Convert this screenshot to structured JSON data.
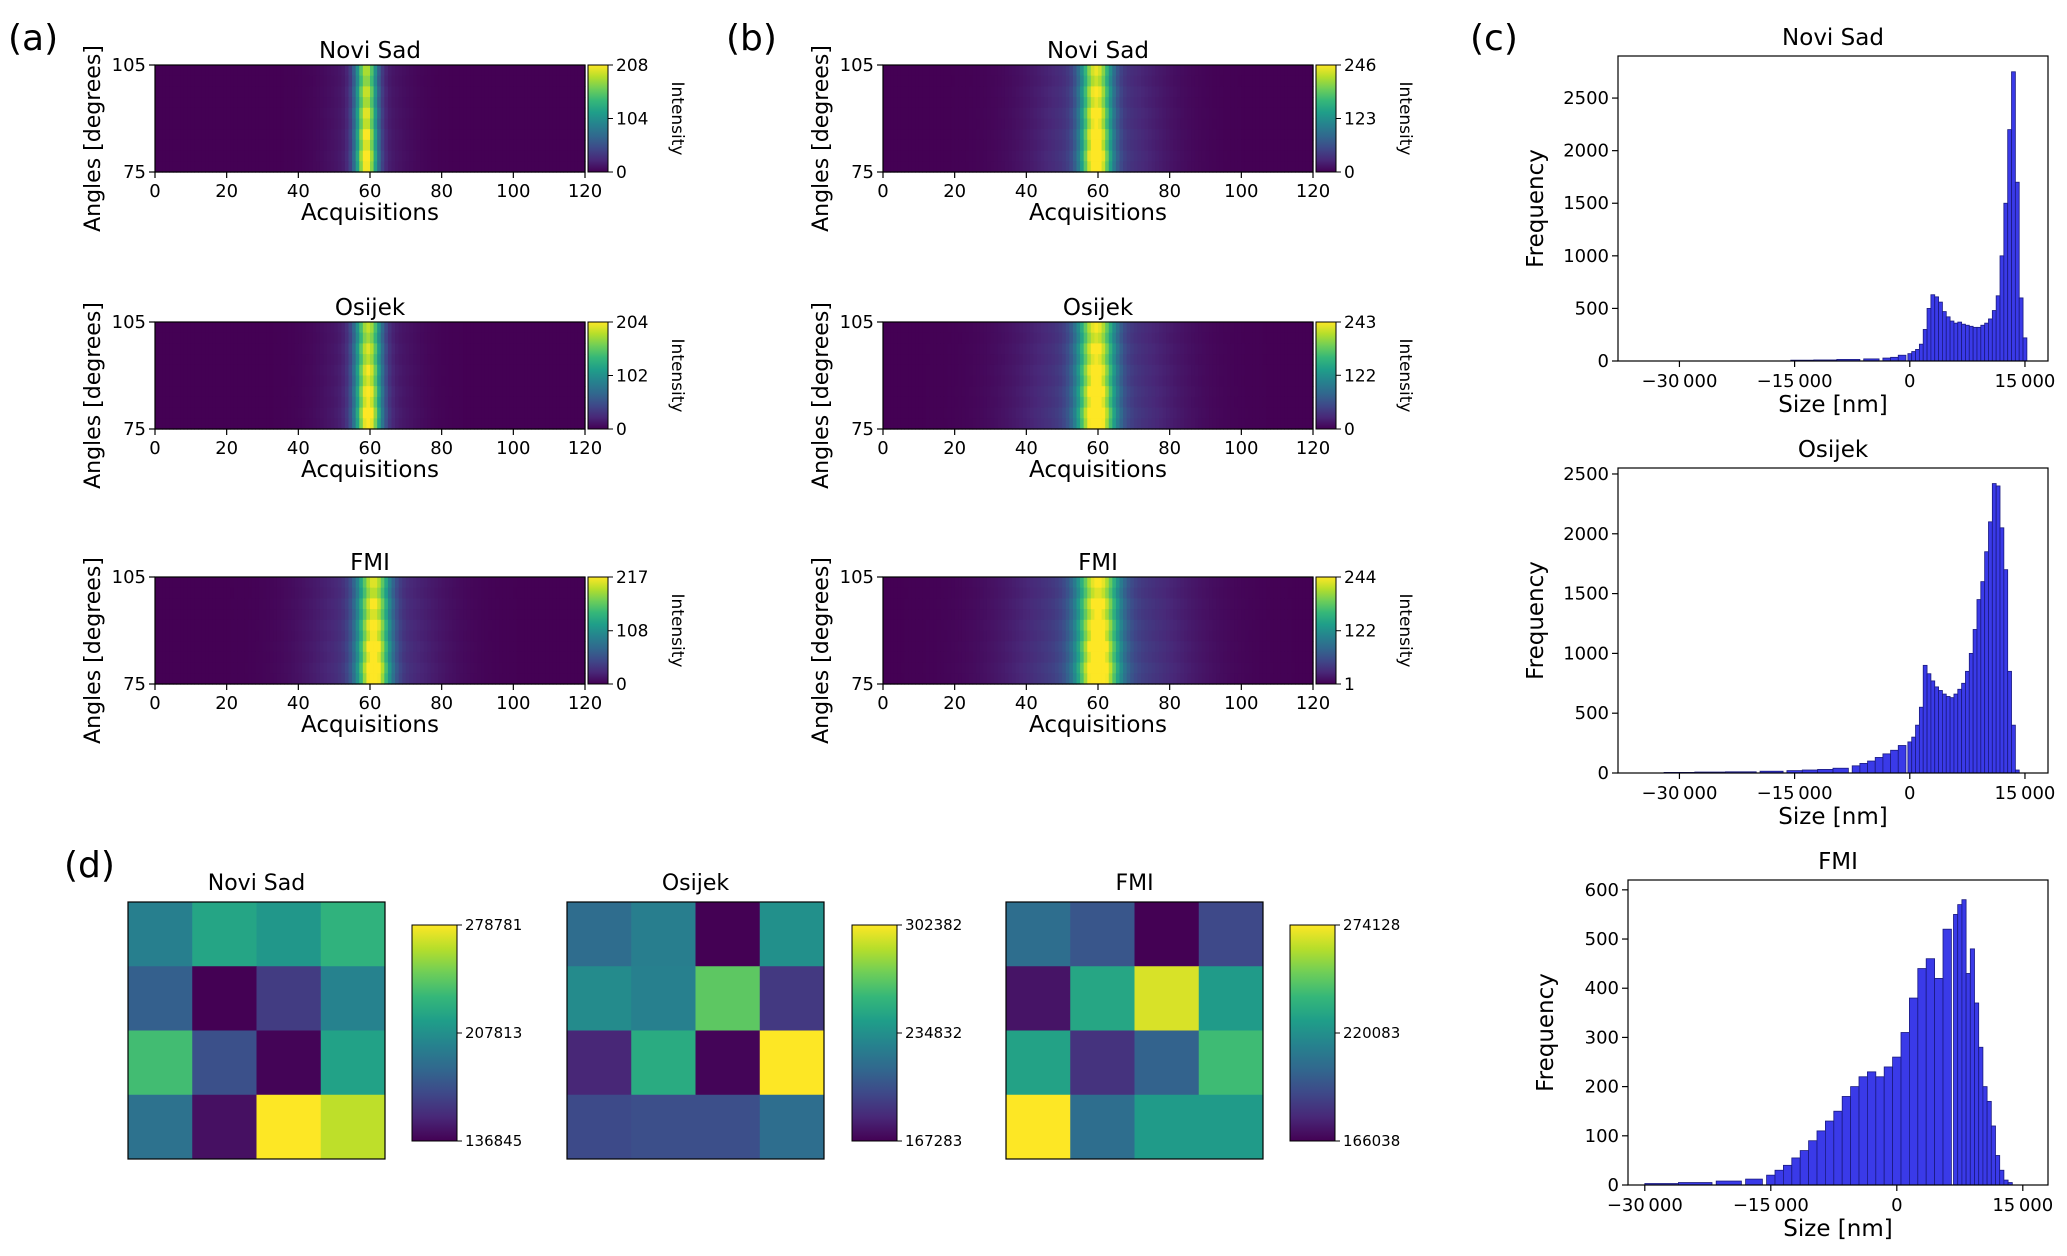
{
  "panel_letters": [
    "(a)",
    "(b)",
    "(c)",
    "(d)"
  ],
  "colormap_stops": [
    "#440154",
    "#482878",
    "#3e4989",
    "#31688e",
    "#26828e",
    "#1f9e89",
    "#35b779",
    "#6ece58",
    "#b5de2b",
    "#fde725"
  ],
  "hist_color": "#3a3ae8",
  "chart_data": [
    {
      "panel": "(a)",
      "type": "heatmap",
      "title": "Novi Sad",
      "xlabel": "Acquisitions",
      "ylabel": "Angles [degrees]",
      "colorbar_label": "Intensity",
      "xlim": [
        0,
        120
      ],
      "ylim": [
        75,
        105
      ],
      "xticks": [
        0,
        20,
        40,
        60,
        80,
        100,
        120
      ],
      "yticks": [
        75,
        105
      ],
      "colorbar_ticks": [
        0,
        104,
        208
      ],
      "peak_center": 59,
      "peak_width": 2.2,
      "shoulder_width": 8,
      "shoulder_level": 0.1
    },
    {
      "panel": "(a)",
      "type": "heatmap",
      "title": "Osijek",
      "xlabel": "Acquisitions",
      "ylabel": "Angles [degrees]",
      "colorbar_label": "Intensity",
      "xlim": [
        0,
        120
      ],
      "ylim": [
        75,
        105
      ],
      "xticks": [
        0,
        20,
        40,
        60,
        80,
        100,
        120
      ],
      "yticks": [
        75,
        105
      ],
      "colorbar_ticks": [
        0,
        102,
        204
      ],
      "peak_center": 59.5,
      "peak_width": 2.6,
      "shoulder_width": 9,
      "shoulder_level": 0.12
    },
    {
      "panel": "(a)",
      "type": "heatmap",
      "title": "FMI",
      "xlabel": "Acquisitions",
      "ylabel": "Angles [degrees]",
      "colorbar_label": "Intensity",
      "xlim": [
        0,
        120
      ],
      "ylim": [
        75,
        105
      ],
      "xticks": [
        0,
        20,
        40,
        60,
        80,
        100,
        120
      ],
      "yticks": [
        75,
        105
      ],
      "colorbar_ticks": [
        0,
        108,
        217
      ],
      "peak_center": 61,
      "peak_width": 3.2,
      "shoulder_width": 13,
      "shoulder_level": 0.18
    },
    {
      "panel": "(b)",
      "type": "heatmap",
      "title": "Novi Sad",
      "xlabel": "Acquisitions",
      "ylabel": "Angles [degrees]",
      "colorbar_label": "Intensity",
      "xlim": [
        0,
        120
      ],
      "ylim": [
        75,
        105
      ],
      "xticks": [
        0,
        20,
        40,
        60,
        80,
        100,
        120
      ],
      "yticks": [
        75,
        105
      ],
      "colorbar_ticks": [
        0,
        123,
        246
      ],
      "peak_center": 59.5,
      "peak_width": 3.0,
      "shoulder_width": 13,
      "shoulder_level": 0.2
    },
    {
      "panel": "(b)",
      "type": "heatmap",
      "title": "Osijek",
      "xlabel": "Acquisitions",
      "ylabel": "Angles [degrees]",
      "colorbar_label": "Intensity",
      "xlim": [
        0,
        120
      ],
      "ylim": [
        75,
        105
      ],
      "xticks": [
        0,
        20,
        40,
        60,
        80,
        100,
        120
      ],
      "yticks": [
        75,
        105
      ],
      "colorbar_ticks": [
        0,
        122,
        243
      ],
      "peak_center": 59.5,
      "peak_width": 3.6,
      "shoulder_width": 15,
      "shoulder_level": 0.22
    },
    {
      "panel": "(b)",
      "type": "heatmap",
      "title": "FMI",
      "xlabel": "Acquisitions",
      "ylabel": "Angles [degrees]",
      "colorbar_label": "Intensity",
      "xlim": [
        0,
        120
      ],
      "ylim": [
        75,
        105
      ],
      "xticks": [
        0,
        20,
        40,
        60,
        80,
        100,
        120
      ],
      "yticks": [
        75,
        105
      ],
      "colorbar_ticks": [
        1,
        122,
        244
      ],
      "peak_center": 60,
      "peak_width": 4.0,
      "shoulder_width": 17,
      "shoulder_level": 0.25
    },
    {
      "panel": "(c)",
      "type": "bar",
      "title": "Novi Sad",
      "xlabel": "Size [nm]",
      "ylabel": "Frequency",
      "xlim": [
        -38000,
        18000
      ],
      "ylim": [
        0,
        2900
      ],
      "xticks": [
        {
          "value": -30000,
          "label": "−30 000"
        },
        {
          "value": -15000,
          "label": "−15 000"
        },
        {
          "value": 0,
          "label": "0"
        },
        {
          "value": 15000,
          "label": "15 000"
        }
      ],
      "yticks": [
        0,
        500,
        1000,
        1500,
        2000,
        2500
      ],
      "bins_x": [
        -14000,
        -11000,
        -8000,
        -5000,
        -3000,
        -2000,
        -1000,
        0,
        500,
        1000,
        1500,
        2000,
        2500,
        3000,
        3500,
        4000,
        4500,
        5000,
        5500,
        6000,
        6500,
        7000,
        7500,
        8000,
        8500,
        9000,
        9500,
        10000,
        10500,
        11000,
        11500,
        12000,
        12500,
        13000,
        13500,
        14000,
        14500,
        15000
      ],
      "bins_y": [
        8,
        10,
        15,
        20,
        28,
        35,
        55,
        70,
        90,
        110,
        160,
        300,
        500,
        630,
        610,
        560,
        470,
        420,
        380,
        360,
        370,
        350,
        340,
        330,
        320,
        320,
        340,
        360,
        400,
        480,
        620,
        1000,
        1500,
        2200,
        2750,
        1700,
        600,
        220
      ]
    },
    {
      "panel": "(c)",
      "type": "bar",
      "title": "Osijek",
      "xlabel": "Size [nm]",
      "ylabel": "Frequency",
      "xlim": [
        -38000,
        18000
      ],
      "ylim": [
        0,
        2550
      ],
      "xticks": [
        {
          "value": -30000,
          "label": "−30 000"
        },
        {
          "value": -15000,
          "label": "−15 000"
        },
        {
          "value": 0,
          "label": "0"
        },
        {
          "value": 15000,
          "label": "15 000"
        }
      ],
      "yticks": [
        0,
        500,
        1000,
        1500,
        2000,
        2500
      ],
      "bins_x": [
        -30000,
        -26000,
        -22000,
        -18000,
        -15000,
        -13000,
        -11000,
        -9000,
        -7000,
        -6000,
        -5000,
        -4000,
        -3000,
        -2000,
        -1000,
        0,
        500,
        1000,
        1500,
        2000,
        2500,
        3000,
        3500,
        4000,
        4500,
        5000,
        5500,
        6000,
        6500,
        7000,
        7500,
        8000,
        8500,
        9000,
        9500,
        10000,
        10500,
        11000,
        11500,
        12000,
        12500,
        13000,
        13500,
        14000
      ],
      "bins_y": [
        5,
        8,
        10,
        15,
        20,
        25,
        30,
        40,
        60,
        80,
        100,
        130,
        160,
        190,
        230,
        260,
        300,
        400,
        550,
        900,
        830,
        770,
        720,
        690,
        660,
        640,
        630,
        660,
        700,
        750,
        850,
        1000,
        1200,
        1450,
        1600,
        1850,
        2100,
        2420,
        2400,
        2050,
        1700,
        850,
        400,
        25
      ]
    },
    {
      "panel": "(c)",
      "type": "bar",
      "title": "FMI",
      "xlabel": "Size [nm]",
      "ylabel": "Frequency",
      "xlim": [
        -32000,
        18000
      ],
      "ylim": [
        0,
        620
      ],
      "xticks": [
        {
          "value": -30000,
          "label": "−30 000"
        },
        {
          "value": -15000,
          "label": "−15 000"
        },
        {
          "value": 0,
          "label": "0"
        },
        {
          "value": 15000,
          "label": "15 000"
        }
      ],
      "yticks": [
        0,
        100,
        200,
        300,
        400,
        500,
        600
      ],
      "bins_x": [
        -28000,
        -24000,
        -20000,
        -17000,
        -15000,
        -14000,
        -13000,
        -12000,
        -11000,
        -10000,
        -9000,
        -8000,
        -7000,
        -6000,
        -5000,
        -4000,
        -3000,
        -2000,
        -1000,
        0,
        1000,
        2000,
        3000,
        4000,
        5000,
        6000,
        7000,
        7500,
        8000,
        8500,
        9000,
        9500,
        10000,
        10500,
        11000,
        11500,
        12000,
        12500,
        13000,
        13500
      ],
      "bins_y": [
        3,
        5,
        8,
        12,
        20,
        30,
        40,
        55,
        70,
        90,
        110,
        130,
        150,
        180,
        200,
        220,
        230,
        220,
        240,
        260,
        310,
        380,
        440,
        460,
        420,
        520,
        550,
        570,
        580,
        430,
        480,
        370,
        280,
        200,
        170,
        120,
        60,
        30,
        10,
        5
      ]
    },
    {
      "panel": "(d)",
      "type": "heatmap",
      "title": "Novi Sad",
      "colorbar_ticks": [
        136845,
        207813,
        278781
      ],
      "vmin": 136845,
      "vmax": 278781,
      "grid": [
        [
          198000,
          220000,
          212000,
          228000
        ],
        [
          180000,
          136845,
          162000,
          200000
        ],
        [
          235000,
          172000,
          138000,
          218000
        ],
        [
          190000,
          143000,
          278781,
          265000
        ]
      ]
    },
    {
      "panel": "(d)",
      "type": "heatmap",
      "title": "Osijek",
      "colorbar_ticks": [
        167283,
        234832,
        302382
      ],
      "vmin": 167283,
      "vmax": 302382,
      "grid": [
        [
          215000,
          225000,
          167283,
          235000
        ],
        [
          232000,
          226000,
          268000,
          190000
        ],
        [
          182000,
          250000,
          169000,
          302382
        ],
        [
          198000,
          200000,
          200000,
          216000
        ]
      ]
    },
    {
      "panel": "(d)",
      "type": "heatmap",
      "title": "FMI",
      "colorbar_ticks": [
        166038,
        220083,
        274128
      ],
      "vmin": 166038,
      "vmax": 274128,
      "grid": [
        [
          205000,
          195000,
          166038,
          190000
        ],
        [
          172000,
          230000,
          268000,
          225000
        ],
        [
          228000,
          182000,
          200000,
          240000
        ],
        [
          274128,
          205000,
          225000,
          225000
        ]
      ]
    }
  ]
}
